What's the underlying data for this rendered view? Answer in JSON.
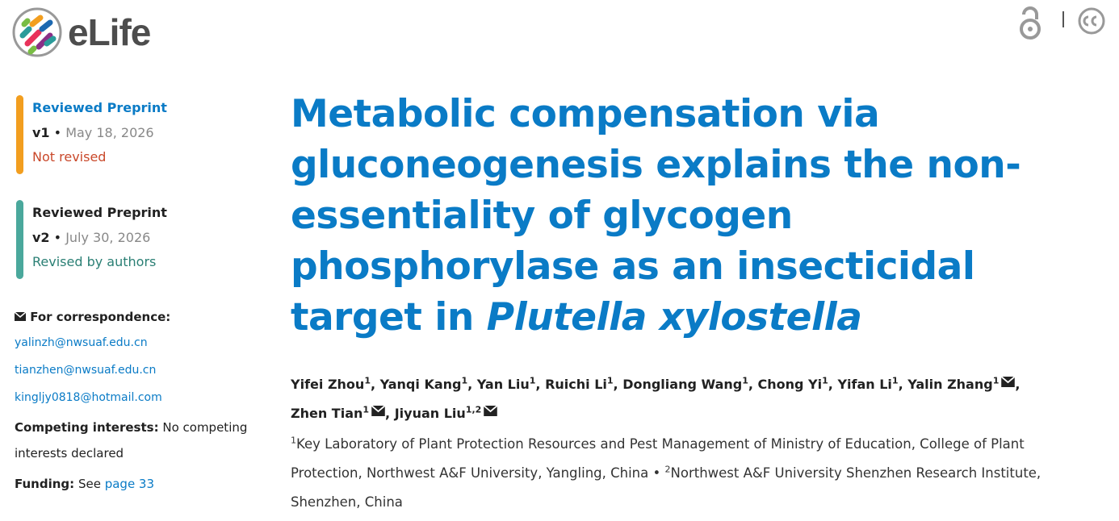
{
  "header": {
    "logo_text": "eLife"
  },
  "versions": [
    {
      "label": "Reviewed Preprint",
      "version": "v1",
      "date": "May 18, 2026",
      "status": "Not revised"
    },
    {
      "label": "Reviewed Preprint",
      "version": "v2",
      "date": "July 30, 2026",
      "status": "Revised by authors"
    }
  ],
  "bullet": "•",
  "correspondence": {
    "heading": "For correspondence:",
    "emails": [
      "yalinzh@nwsuaf.edu.cn",
      "tianzhen@nwsuaf.edu.cn",
      "kingljy0818@hotmail.com"
    ]
  },
  "competing": {
    "label": "Competing interests:",
    "text": "No competing interests declared"
  },
  "funding": {
    "label": "Funding:",
    "text": "See",
    "link": "page 33"
  },
  "article": {
    "title": "Metabolic compensation via gluconeogenesis explains the non-essentiality of glycogen phosphorylase as an insecticidal target in",
    "title_italic": "Plutella xylostella",
    "author_separator": ",",
    "authors": [
      {
        "name": "Yifei Zhou",
        "aff": "1",
        "email": false
      },
      {
        "name": "Yanqi Kang",
        "aff": "1",
        "email": false
      },
      {
        "name": "Yan Liu",
        "aff": "1",
        "email": false
      },
      {
        "name": "Ruichi Li",
        "aff": "1",
        "email": false
      },
      {
        "name": "Dongliang Wang",
        "aff": "1",
        "email": false
      },
      {
        "name": "Chong Yi",
        "aff": "1",
        "email": false
      },
      {
        "name": "Yifan Li",
        "aff": "1",
        "email": false
      },
      {
        "name": "Yalin Zhang",
        "aff": "1",
        "email": true
      },
      {
        "name": "Zhen Tian",
        "aff": "1",
        "email": true
      },
      {
        "name": "Jiyuan Liu",
        "aff": "1,2",
        "email": true
      }
    ],
    "affiliations": [
      {
        "num": "1",
        "text": "Key Laboratory of Plant Protection Resources and Pest Management of Ministry of Education, College of Plant Protection, Northwest A&F University, Yangling, China"
      },
      {
        "num": "2",
        "text": "Northwest A&F University Shenzhen Research Institute, Shenzhen, China"
      }
    ]
  }
}
